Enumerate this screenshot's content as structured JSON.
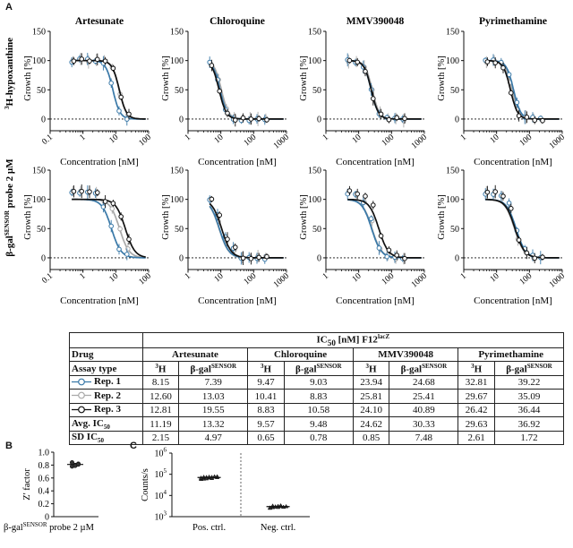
{
  "panel_labels": {
    "a": "A",
    "b": "B",
    "c": "C"
  },
  "row_labels": {
    "row1": {
      "prefix": "3",
      "main": "H-hypoxanthine"
    },
    "row2": {
      "main": "β-gal",
      "sup": "SENSOR",
      "suffix": " probe 2 µM"
    }
  },
  "colors": {
    "rep1": "#3a79a8",
    "rep2": "#a9a9a9",
    "rep3": "#111111"
  },
  "chart_data": [
    {
      "type": "line",
      "title": "Artesunate",
      "xlabel": "Concentration [nM]",
      "ylabel": "Growth [%]",
      "xscale": "log",
      "xlim": [
        0.1,
        100
      ],
      "xtick_labels": [
        "0.1",
        "1",
        "10",
        "100"
      ],
      "ylim": [
        -20,
        150
      ],
      "ytick_labels": [
        "0",
        "50",
        "100",
        "150"
      ],
      "series": [
        {
          "name": "Rep. 1",
          "ic50": 8.15
        },
        {
          "name": "Rep. 2",
          "ic50": 12.6
        },
        {
          "name": "Rep. 3",
          "ic50": 12.81
        }
      ]
    },
    {
      "type": "line",
      "title": "Chloroquine",
      "xlabel": "Concentration [nM]",
      "ylabel": "Growth [%]",
      "xscale": "log",
      "xlim": [
        1,
        1000
      ],
      "xtick_labels": [
        "1",
        "10",
        "100",
        "1000"
      ],
      "ylim": [
        -20,
        150
      ],
      "ytick_labels": [
        "0",
        "50",
        "100",
        "150"
      ],
      "series": [
        {
          "name": "Rep. 1",
          "ic50": 9.47
        },
        {
          "name": "Rep. 2",
          "ic50": 10.41
        },
        {
          "name": "Rep. 3",
          "ic50": 8.83
        }
      ]
    },
    {
      "type": "line",
      "title": "MMV390048",
      "xlabel": "Concentration [nM]",
      "ylabel": "Growth [%]",
      "xscale": "log",
      "xlim": [
        1,
        1000
      ],
      "xtick_labels": [
        "1",
        "10",
        "100",
        "1000"
      ],
      "ylim": [
        -20,
        150
      ],
      "ytick_labels": [
        "0",
        "50",
        "100",
        "150"
      ],
      "series": [
        {
          "name": "Rep. 1",
          "ic50": 23.94
        },
        {
          "name": "Rep. 2",
          "ic50": 25.81
        },
        {
          "name": "Rep. 3",
          "ic50": 24.1
        }
      ]
    },
    {
      "type": "line",
      "title": "Pyrimethamine",
      "xlabel": "Concentration [nM]",
      "ylabel": "Growth [%]",
      "xscale": "log",
      "xlim": [
        1,
        1000
      ],
      "xtick_labels": [
        "1",
        "10",
        "100",
        "1000"
      ],
      "ylim": [
        -20,
        150
      ],
      "ytick_labels": [
        "0",
        "50",
        "100",
        "150"
      ],
      "series": [
        {
          "name": "Rep. 1",
          "ic50": 32.81
        },
        {
          "name": "Rep. 2",
          "ic50": 29.67
        },
        {
          "name": "Rep. 3",
          "ic50": 26.42
        }
      ]
    },
    {
      "type": "line",
      "title": "",
      "xlabel": "Concentration [nM]",
      "ylabel": "Growth [%]",
      "xscale": "log",
      "xlim": [
        0.1,
        100
      ],
      "xtick_labels": [
        "0.1",
        "1",
        "10",
        "100"
      ],
      "ylim": [
        -20,
        150
      ],
      "ytick_labels": [
        "0",
        "50",
        "100",
        "150"
      ],
      "series": [
        {
          "name": "Rep. 1",
          "ic50": 7.39
        },
        {
          "name": "Rep. 2",
          "ic50": 13.03
        },
        {
          "name": "Rep. 3",
          "ic50": 19.55
        }
      ]
    },
    {
      "type": "line",
      "title": "",
      "xlabel": "Concentration [nM]",
      "ylabel": "Growth [%]",
      "xscale": "log",
      "xlim": [
        1,
        1000
      ],
      "xtick_labels": [
        "1",
        "10",
        "100",
        "1000"
      ],
      "ylim": [
        -20,
        150
      ],
      "ytick_labels": [
        "0",
        "50",
        "100",
        "150"
      ],
      "series": [
        {
          "name": "Rep. 1",
          "ic50": 9.03
        },
        {
          "name": "Rep. 2",
          "ic50": 8.83
        },
        {
          "name": "Rep. 3",
          "ic50": 10.58
        }
      ]
    },
    {
      "type": "line",
      "title": "",
      "xlabel": "Concentration [nM]",
      "ylabel": "Growth [%]",
      "xscale": "log",
      "xlim": [
        1,
        1000
      ],
      "xtick_labels": [
        "1",
        "10",
        "100",
        "1000"
      ],
      "ylim": [
        -20,
        150
      ],
      "ytick_labels": [
        "0",
        "50",
        "100",
        "150"
      ],
      "series": [
        {
          "name": "Rep. 1",
          "ic50": 24.68
        },
        {
          "name": "Rep. 2",
          "ic50": 25.41
        },
        {
          "name": "Rep. 3",
          "ic50": 40.89
        }
      ]
    },
    {
      "type": "line",
      "title": "",
      "xlabel": "Concentration [nM]",
      "ylabel": "Growth [%]",
      "xscale": "log",
      "xlim": [
        1,
        1000
      ],
      "xtick_labels": [
        "1",
        "10",
        "100",
        "1000"
      ],
      "ylim": [
        -20,
        150
      ],
      "ytick_labels": [
        "0",
        "50",
        "100",
        "150"
      ],
      "series": [
        {
          "name": "Rep. 1",
          "ic50": 39.22
        },
        {
          "name": "Rep. 2",
          "ic50": 35.09
        },
        {
          "name": "Rep. 3",
          "ic50": 36.44
        }
      ]
    },
    {
      "type": "scatter",
      "panel": "B",
      "ylabel": "Z' factor",
      "ylim": [
        0,
        1.0
      ],
      "ytick_labels": [
        "0",
        "0.2",
        "0.4",
        "0.6",
        "0.8",
        "1.0"
      ],
      "xlabel": {
        "main": "β-gal",
        "sup": "SENSOR",
        "suffix": " probe 2 µM"
      },
      "values": [
        0.78,
        0.8,
        0.82,
        0.84,
        0.79,
        0.81
      ],
      "mean": 0.81
    },
    {
      "type": "scatter",
      "panel": "C",
      "ylabel": "Counts/s",
      "yscale": "log",
      "ylim": [
        1000,
        1000000
      ],
      "ytick_labels": [
        {
          "base": "10",
          "exp": "3"
        },
        {
          "base": "10",
          "exp": "4"
        },
        {
          "base": "10",
          "exp": "5"
        },
        {
          "base": "10",
          "exp": "6"
        }
      ],
      "categories": [
        "Pos. ctrl.",
        "Neg. ctrl."
      ],
      "pos_values": [
        60000,
        65000,
        70000,
        72000,
        75000,
        78000,
        80000,
        68000,
        62000,
        74000,
        71000,
        66000,
        79000,
        73000,
        69000,
        76000,
        64000,
        77000
      ],
      "neg_values": [
        2600,
        2800,
        3000,
        3200,
        3400,
        2900,
        3100,
        2700,
        3300,
        3000,
        2850,
        3150
      ]
    }
  ],
  "table": {
    "header_title": {
      "prefix": "IC",
      "sub": "50",
      "mid": " [nM] F12",
      "sup": "lacZ"
    },
    "drug_label": "Drug",
    "drugs": [
      "Artesunate",
      "Chloroquine",
      "MMV390048",
      "Pyrimethamine"
    ],
    "assay_label": "Assay type",
    "assay_h": {
      "sup": "3",
      "main": "H"
    },
    "assay_b": {
      "main": "β-gal",
      "sup": "SENSOR"
    },
    "rows": [
      {
        "label": "Rep. 1",
        "values": [
          "8.15",
          "7.39",
          "9.47",
          "9.03",
          "23.94",
          "24.68",
          "32.81",
          "39.22"
        ]
      },
      {
        "label": "Rep. 2",
        "values": [
          "12.60",
          "13.03",
          "10.41",
          "8.83",
          "25.81",
          "25.41",
          "29.67",
          "35.09"
        ]
      },
      {
        "label": "Rep. 3",
        "values": [
          "12.81",
          "19.55",
          "8.83",
          "10.58",
          "24.10",
          "40.89",
          "26.42",
          "36.44"
        ]
      },
      {
        "label": "Avg. IC",
        "sub": "50",
        "values": [
          "11.19",
          "13.32",
          "9.57",
          "9.48",
          "24.62",
          "30.33",
          "29.63",
          "36.92"
        ]
      },
      {
        "label": "SD IC",
        "sub": "50",
        "values": [
          "2.15",
          "4.97",
          "0.65",
          "0.78",
          "0.85",
          "7.48",
          "2.61",
          "1.72"
        ]
      }
    ]
  }
}
